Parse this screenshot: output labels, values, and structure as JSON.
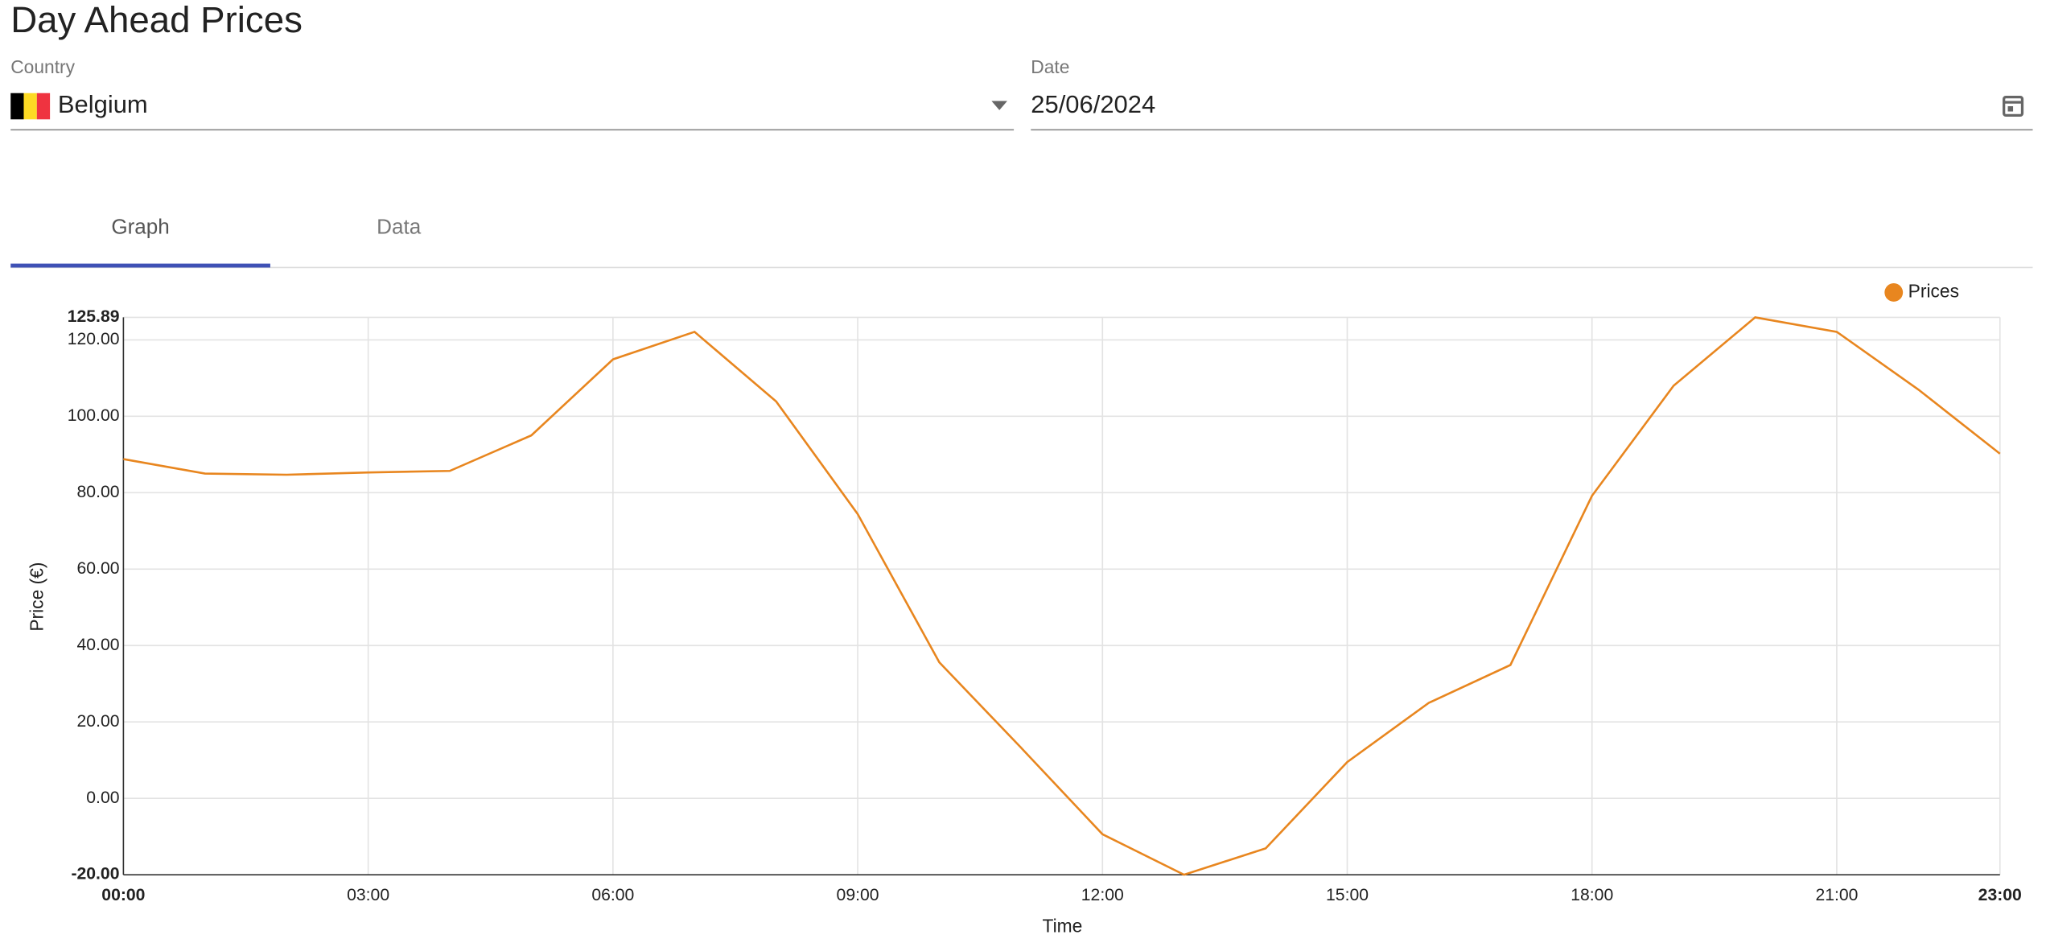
{
  "header": {
    "title": "Day Ahead Prices"
  },
  "country": {
    "label": "Country",
    "value": "Belgium"
  },
  "date": {
    "label": "Date",
    "value": "25/06/2024"
  },
  "tabs": [
    "Graph",
    "Data"
  ],
  "chart_data": {
    "type": "line",
    "xlabel": "Time",
    "ylabel": "Price (€)",
    "categories": [
      "00:00",
      null,
      null,
      "03:00",
      null,
      null,
      "06:00",
      null,
      null,
      "09:00",
      null,
      null,
      "12:00",
      null,
      null,
      "15:00",
      null,
      null,
      "18:00",
      null,
      null,
      "21:00",
      null,
      "23:00"
    ],
    "series": [
      {
        "name": "Prices",
        "color": "#e8861f",
        "values": [
          88.8,
          85.0,
          84.7,
          85.3,
          85.7,
          95.0,
          114.9,
          122.1,
          103.9,
          74.4,
          35.6,
          13.3,
          -9.4,
          -20,
          -13.1,
          9.5,
          25.0,
          34.9,
          79.2,
          108.0,
          125.89,
          122.1,
          107.0,
          90.2
        ]
      }
    ],
    "ylim": [
      -20,
      125.89
    ],
    "yticks": [
      {
        "value": -20,
        "label": "-20.00"
      },
      {
        "value": 0,
        "label": "0.00"
      },
      {
        "value": 20,
        "label": "20.00"
      },
      {
        "value": 40,
        "label": "40.00"
      },
      {
        "value": 60,
        "label": "60.00"
      },
      {
        "value": 80,
        "label": "80.00"
      },
      {
        "value": 100,
        "label": "100.00"
      },
      {
        "value": 120,
        "label": "120.00"
      },
      {
        "value": 125.89,
        "label": "125.89"
      }
    ],
    "grid": true,
    "legend": "top-right"
  }
}
